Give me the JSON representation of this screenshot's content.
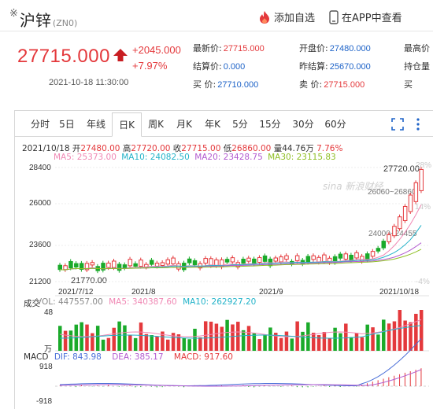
{
  "header": {
    "star": "※",
    "title": "沪锌",
    "code": "(ZN0)",
    "add_watch": "添加自选",
    "app_view": "在APP中查看"
  },
  "quote": {
    "price": "27715.000",
    "change": "+2045.000",
    "change_pct": "+7.97%",
    "datetime": "2021-10-18 11:30:00",
    "fields": {
      "latest_label": "最新价:",
      "latest": "27715.000",
      "settle_label": "结算价:",
      "settle": "0.000",
      "buy_label": "买  价:",
      "buy": "27710.000",
      "open_label": "开盘价:",
      "open": "27480.000",
      "prevsettle_label": "昨结算:",
      "prevsettle": "25670.000",
      "sell_label": "卖  价:",
      "sell": "27715.000",
      "high_label": "最高价",
      "hold_label": "持仓量",
      "buy2_label": "买"
    }
  },
  "tabs": [
    "分时",
    "5日",
    "年线",
    "日K",
    "周K",
    "月K",
    "年K",
    "5分",
    "15分",
    "30分",
    "60分"
  ],
  "active_tab": "日K",
  "ohlc": {
    "date": "2021/10/18",
    "open_label": "开",
    "open": "27480.00",
    "high_label": "高",
    "high": "27720.00",
    "close_label": "收",
    "close": "27715.00",
    "low_label": "低",
    "low": "26860.00",
    "vol_label": "量",
    "vol": "44.76万",
    "pct": "7.76%"
  },
  "ma": {
    "ma5": "MA5: 25373.00",
    "ma10": "MA10: 24082.50",
    "ma20": "MA20: 23428.75",
    "ma30": "MA30: 23115.83"
  },
  "price_axis": {
    "p1": "28400",
    "p2": "26000",
    "p3": "23600",
    "p4": "21200"
  },
  "pct_axis": {
    "top": "28%",
    "mid": "14%",
    "bot": "-4%"
  },
  "annotations": {
    "high": "27720.00",
    "range1": "26060~26860",
    "range2": "24000~24455",
    "low": "21770.00"
  },
  "date_axis": [
    "2021/7/12",
    "2021/8",
    "2021/9",
    "2021/10/18"
  ],
  "volume": {
    "title": "成交",
    "vol": "VOL: 447557.00",
    "ma5": "MA5: 340387.60",
    "ma10": "MA10: 262927.20",
    "axis_top": "48",
    "axis_unit": "万"
  },
  "macd": {
    "title": "MACD",
    "dif": "DIF: 843.98",
    "dea": "DEA: 385.17",
    "macd": "MACD: 917.60",
    "axis_top": "918",
    "axis_bot": "-918"
  },
  "watermark": "sina 新浪财经",
  "colors": {
    "up": "#e4393c",
    "down": "#1aaa2a",
    "link": "#1e63c8",
    "ma5": "#f088b4",
    "ma10": "#23b3c9",
    "ma20": "#b25ad0",
    "ma30": "#8fbf24"
  }
}
